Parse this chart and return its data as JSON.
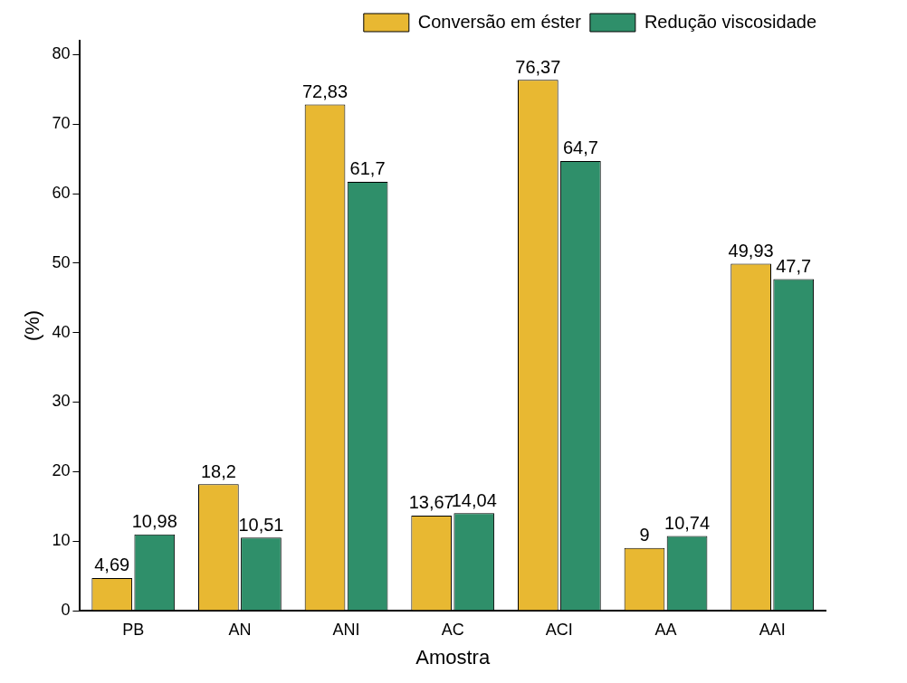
{
  "chart_data": {
    "type": "bar",
    "xlabel": "Amostra",
    "ylabel": "(%)",
    "categories": [
      "PB",
      "AN",
      "ANI",
      "AC",
      "ACI",
      "AA",
      "AAI"
    ],
    "series": [
      {
        "name": "Conversão em éster",
        "color": "#e8b832",
        "values": [
          4.69,
          18.2,
          72.83,
          13.67,
          76.37,
          9,
          49.93
        ],
        "value_labels": [
          "4,69",
          "18,2",
          "72,83",
          "13,67",
          "76,37",
          "9",
          "49,93"
        ]
      },
      {
        "name": "Redução viscosidade",
        "color": "#2f8f6a",
        "values": [
          10.98,
          10.51,
          61.7,
          14.04,
          64.7,
          10.74,
          47.7
        ],
        "value_labels": [
          "10,98",
          "10,51",
          "61,7",
          "14,04",
          "64,7",
          "10,74",
          "47,7"
        ]
      }
    ],
    "ylim": [
      0,
      82
    ],
    "yticks": [
      0,
      10,
      20,
      30,
      40,
      50,
      60,
      70,
      80
    ],
    "grid": false,
    "legend": "top right"
  }
}
